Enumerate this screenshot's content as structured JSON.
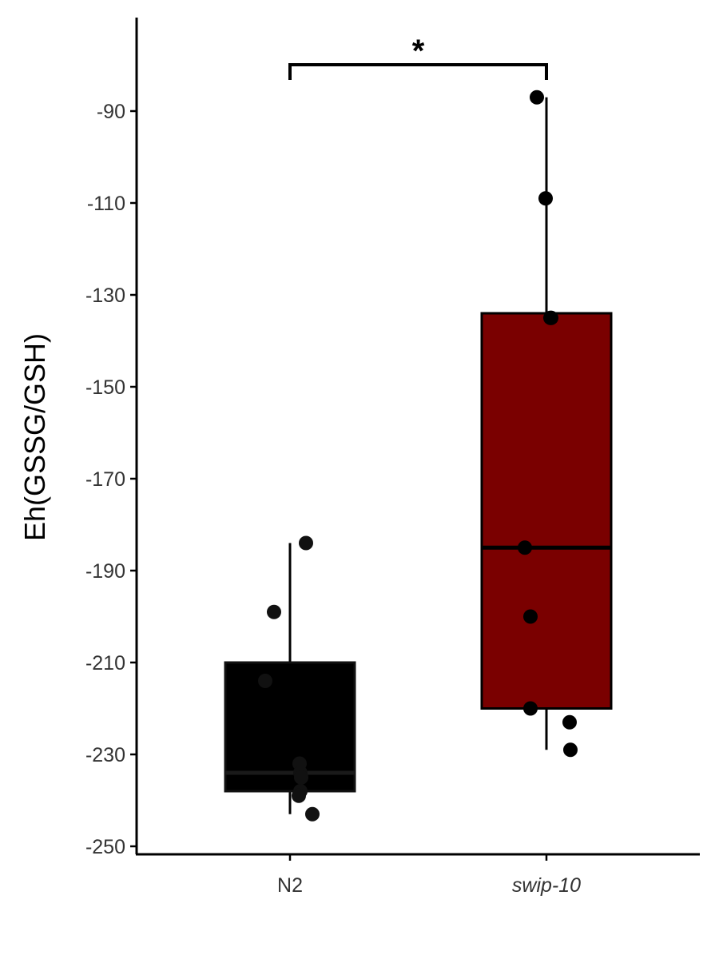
{
  "chart_data": {
    "type": "box",
    "ylabel": "Eh(GSSG/GSH)",
    "xlabel": "",
    "ylim": [
      -253,
      -70
    ],
    "yticks": [
      -250,
      -230,
      -210,
      -190,
      -170,
      -150,
      -130,
      -110,
      -90
    ],
    "grid": false,
    "legend": "none",
    "groups": [
      {
        "name": "N2",
        "italic": false,
        "fill": "#000000",
        "box": {
          "lower_whisker": -243,
          "q1": -238,
          "median": -234,
          "q3": -210,
          "upper_whisker": -184
        },
        "points": [
          -184,
          -199,
          -214,
          -232,
          -234,
          -235,
          -238,
          -239,
          -243
        ]
      },
      {
        "name": "swip-10",
        "italic": true,
        "fill": "#7a0000",
        "box": {
          "lower_whisker": -229,
          "q1": -220,
          "median": -185,
          "q3": -134,
          "upper_whisker": -87
        },
        "points": [
          -87,
          -109,
          -135,
          -135,
          -185,
          -200,
          -220,
          -223,
          -229
        ]
      }
    ],
    "annotations": [
      {
        "type": "significance",
        "label": "*",
        "between": [
          "N2",
          "swip-10"
        ]
      }
    ]
  }
}
